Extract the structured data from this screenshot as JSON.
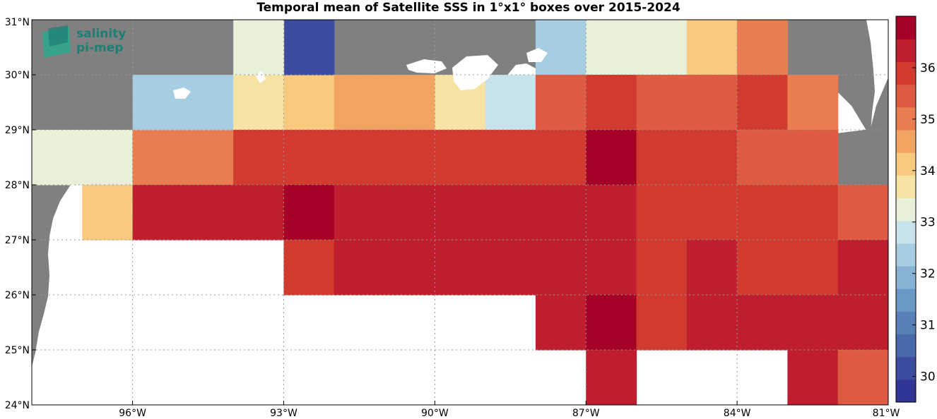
{
  "title": "Temporal mean of Satellite SSS in 1°x1° boxes over 2015-2024",
  "logo": {
    "line1": "salinity",
    "line2": "pi-mep"
  },
  "map": {
    "lon_range": [
      -98,
      -81
    ],
    "lat_range": [
      24,
      31
    ],
    "lon_ticks": [
      {
        "value": -96,
        "label": "96°W"
      },
      {
        "value": -93,
        "label": "93°W"
      },
      {
        "value": -90,
        "label": "90°W"
      },
      {
        "value": -87,
        "label": "87°W"
      },
      {
        "value": -84,
        "label": "84°W"
      },
      {
        "value": -81,
        "label": "81°W"
      }
    ],
    "lat_ticks": [
      {
        "value": 24,
        "label": "24°N"
      },
      {
        "value": 25,
        "label": "25°N"
      },
      {
        "value": 26,
        "label": "26°N"
      },
      {
        "value": 27,
        "label": "27°N"
      },
      {
        "value": 28,
        "label": "28°N"
      },
      {
        "value": 29,
        "label": "29°N"
      },
      {
        "value": 30,
        "label": "30°N"
      },
      {
        "value": 31,
        "label": "31°N"
      }
    ],
    "land_color": "#808080",
    "ocean_color": "#ffffff"
  },
  "colorbar": {
    "range": [
      29.5,
      37
    ],
    "ticks": [
      30,
      31,
      32,
      33,
      34,
      35,
      36
    ],
    "colors": [
      "#313695",
      "#3c4d9f",
      "#4768a9",
      "#5581b7",
      "#6a99c5",
      "#86b2d4",
      "#a6cde2",
      "#c8e3eb",
      "#e9f0d9",
      "#f6e3a4",
      "#f8c97f",
      "#f1a461",
      "#e97d51",
      "#de5a40",
      "#d03a2f",
      "#be1e2d",
      "#a50026"
    ]
  },
  "chart_data": {
    "type": "heatmap",
    "title": "Temporal mean of Satellite SSS in 1°x1° boxes over 2015-2024",
    "x_units": "longitude (°E)",
    "y_units": "latitude (°N)",
    "cell_size_deg": 1,
    "cells": [
      {
        "lon": -98,
        "lat": 28,
        "sss": 33.3
      },
      {
        "lon": -97,
        "lat": 28,
        "sss": 33.3
      },
      {
        "lon": -97,
        "lat": 27,
        "sss": 34.0
      },
      {
        "lon": -96,
        "lat": 28,
        "sss": 35.1
      },
      {
        "lon": -95,
        "lat": 28,
        "sss": 35.1
      },
      {
        "lon": -96,
        "lat": 27,
        "sss": 36.4
      },
      {
        "lon": -95,
        "lat": 27,
        "sss": 36.4
      },
      {
        "lon": -96,
        "lat": 29,
        "sss": 32.3
      },
      {
        "lon": -95,
        "lat": 29,
        "sss": 32.3
      },
      {
        "lon": -94,
        "lat": 29,
        "sss": 33.9
      },
      {
        "lon": -94,
        "lat": 28,
        "sss": 35.9
      },
      {
        "lon": -94,
        "lat": 27,
        "sss": 36.4
      },
      {
        "lon": -93,
        "lat": 29,
        "sss": 34.2
      },
      {
        "lon": -93,
        "lat": 28,
        "sss": 36.1
      },
      {
        "lon": -93,
        "lat": 27,
        "sss": 36.9
      },
      {
        "lon": -93,
        "lat": 26,
        "sss": 35.9
      },
      {
        "lon": -93,
        "lat": 30,
        "sss": 30.1
      },
      {
        "lon": -94,
        "lat": 30,
        "sss": 33.2
      },
      {
        "lon": -92,
        "lat": 29,
        "sss": 34.6
      },
      {
        "lon": -92,
        "lat": 28,
        "sss": 35.8
      },
      {
        "lon": -92,
        "lat": 27,
        "sss": 36.3
      },
      {
        "lon": -92,
        "lat": 26,
        "sss": 36.4
      },
      {
        "lon": -91,
        "lat": 29,
        "sss": 34.6
      },
      {
        "lon": -91,
        "lat": 28,
        "sss": 35.8
      },
      {
        "lon": -91,
        "lat": 27,
        "sss": 36.4
      },
      {
        "lon": -91,
        "lat": 26,
        "sss": 36.4
      },
      {
        "lon": -90,
        "lat": 29,
        "sss": 33.8
      },
      {
        "lon": -90,
        "lat": 28,
        "sss": 35.8
      },
      {
        "lon": -90,
        "lat": 27,
        "sss": 36.3
      },
      {
        "lon": -90,
        "lat": 26,
        "sss": 36.4
      },
      {
        "lon": -89,
        "lat": 29,
        "sss": 32.8
      },
      {
        "lon": -89,
        "lat": 28,
        "sss": 35.8
      },
      {
        "lon": -89,
        "lat": 27,
        "sss": 36.3
      },
      {
        "lon": -89,
        "lat": 26,
        "sss": 36.3
      },
      {
        "lon": -88,
        "lat": 30,
        "sss": 32.2
      },
      {
        "lon": -88,
        "lat": 29,
        "sss": 35.5
      },
      {
        "lon": -88,
        "lat": 28,
        "sss": 36.1
      },
      {
        "lon": -88,
        "lat": 27,
        "sss": 36.4
      },
      {
        "lon": -88,
        "lat": 26,
        "sss": 36.3
      },
      {
        "lon": -88,
        "lat": 25,
        "sss": 36.3
      },
      {
        "lon": -87,
        "lat": 30,
        "sss": 33.4
      },
      {
        "lon": -87,
        "lat": 29,
        "sss": 36.0
      },
      {
        "lon": -87,
        "lat": 28,
        "sss": 36.8
      },
      {
        "lon": -87,
        "lat": 27,
        "sss": 36.4
      },
      {
        "lon": -87,
        "lat": 26,
        "sss": 36.3
      },
      {
        "lon": -87,
        "lat": 25,
        "sss": 36.8
      },
      {
        "lon": -87,
        "lat": 24,
        "sss": 36.4
      },
      {
        "lon": -86,
        "lat": 30,
        "sss": 33.4
      },
      {
        "lon": -86,
        "lat": 29,
        "sss": 35.6
      },
      {
        "lon": -86,
        "lat": 28,
        "sss": 35.9
      },
      {
        "lon": -86,
        "lat": 27,
        "sss": 35.8
      },
      {
        "lon": -86,
        "lat": 26,
        "sss": 36.0
      },
      {
        "lon": -86,
        "lat": 25,
        "sss": 36.1
      },
      {
        "lon": -85,
        "lat": 30,
        "sss": 34.2
      },
      {
        "lon": -85,
        "lat": 29,
        "sss": 35.6
      },
      {
        "lon": -85,
        "lat": 28,
        "sss": 36.1
      },
      {
        "lon": -85,
        "lat": 27,
        "sss": 35.8
      },
      {
        "lon": -85,
        "lat": 26,
        "sss": 36.4
      },
      {
        "lon": -85,
        "lat": 25,
        "sss": 36.3
      },
      {
        "lon": -84,
        "lat": 30,
        "sss": 35.1
      },
      {
        "lon": -84,
        "lat": 29,
        "sss": 36.0
      },
      {
        "lon": -84,
        "lat": 28,
        "sss": 35.6
      },
      {
        "lon": -84,
        "lat": 27,
        "sss": 35.7
      },
      {
        "lon": -84,
        "lat": 26,
        "sss": 35.8
      },
      {
        "lon": -84,
        "lat": 25,
        "sss": 36.3
      },
      {
        "lon": -83,
        "lat": 29,
        "sss": 35.0
      },
      {
        "lon": -83,
        "lat": 28,
        "sss": 35.5
      },
      {
        "lon": -83,
        "lat": 27,
        "sss": 35.8
      },
      {
        "lon": -83,
        "lat": 26,
        "sss": 35.7
      },
      {
        "lon": -83,
        "lat": 25,
        "sss": 36.3
      },
      {
        "lon": -83,
        "lat": 24,
        "sss": 36.3
      },
      {
        "lon": -82,
        "lat": 27,
        "sss": 35.6
      },
      {
        "lon": -82,
        "lat": 26,
        "sss": 36.2
      },
      {
        "lon": -82,
        "lat": 25,
        "sss": 36.3
      },
      {
        "lon": -82,
        "lat": 24,
        "sss": 35.6
      }
    ]
  }
}
